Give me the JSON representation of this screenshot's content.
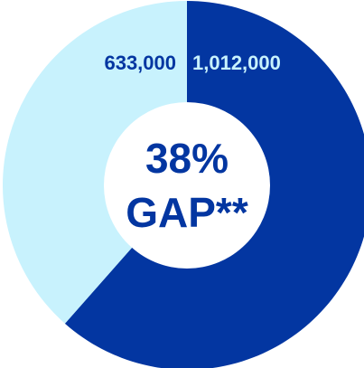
{
  "chart_data": {
    "type": "pie",
    "variant": "donut",
    "slices": [
      {
        "label": "1,012,000",
        "value": 1012000,
        "color": "#0336a1",
        "label_color": "#c8f2fd"
      },
      {
        "label": "633,000",
        "value": 633000,
        "color": "#c8f2fd",
        "label_color": "#0336a1"
      }
    ],
    "center": {
      "line1": "38%",
      "line2": "GAP**",
      "color": "#0336a1"
    },
    "start_angle": "12 o'clock",
    "direction": "clockwise",
    "legend": "none"
  }
}
